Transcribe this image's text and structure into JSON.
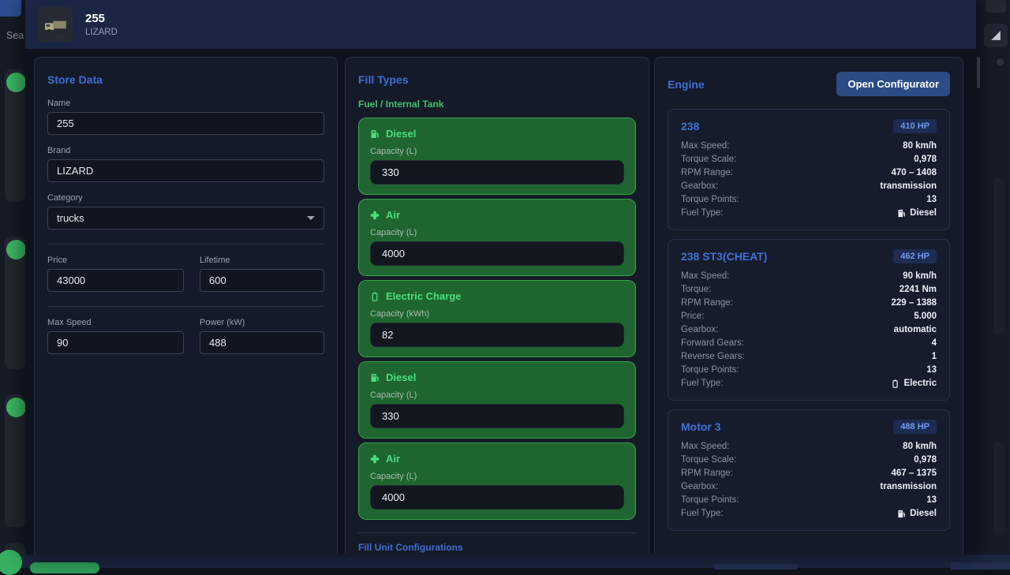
{
  "backdrop": {
    "search_text": "Sea"
  },
  "header": {
    "title": "255",
    "subtitle": "LIZARD",
    "thumbnail_icon": "truck-icon"
  },
  "store_data": {
    "heading": "Store Data",
    "name": {
      "label": "Name",
      "value": "255"
    },
    "brand": {
      "label": "Brand",
      "value": "LIZARD"
    },
    "category": {
      "label": "Category",
      "value": "trucks"
    },
    "price": {
      "label": "Price",
      "value": "43000"
    },
    "lifetime": {
      "label": "Lifetime",
      "value": "600"
    },
    "max_speed": {
      "label": "Max Speed",
      "value": "90"
    },
    "power": {
      "label": "Power (kW)",
      "value": "488"
    }
  },
  "fill_types": {
    "heading": "Fill Types",
    "section_label": "Fuel / Internal Tank",
    "cards": [
      {
        "name": "Diesel",
        "icon": "fuel-pump-icon",
        "capacity_label": "Capacity (L)",
        "value": "330"
      },
      {
        "name": "Air",
        "icon": "fan-icon",
        "capacity_label": "Capacity (L)",
        "value": "4000"
      },
      {
        "name": "Electric Charge",
        "icon": "battery-icon",
        "capacity_label": "Capacity (kWh)",
        "value": "82"
      },
      {
        "name": "Diesel",
        "icon": "fuel-pump-icon",
        "capacity_label": "Capacity (L)",
        "value": "330"
      },
      {
        "name": "Air",
        "icon": "fan-icon",
        "capacity_label": "Capacity (L)",
        "value": "4000"
      }
    ],
    "footer_heading": "Fill Unit Configurations"
  },
  "engine": {
    "heading": "Engine",
    "configurator_button": "Open Configurator",
    "cards": [
      {
        "title": "238",
        "hp": "410 HP",
        "rows": [
          {
            "label": "Max Speed:",
            "value": "80 km/h"
          },
          {
            "label": "Torque Scale:",
            "value": "0,978"
          },
          {
            "label": "RPM Range:",
            "value": "470 – 1408"
          },
          {
            "label": "Gearbox:",
            "value": "transmission"
          },
          {
            "label": "Torque Points:",
            "value": "13"
          },
          {
            "label": "Fuel Type:",
            "value": "Diesel",
            "icon": "fuel-pump-icon"
          }
        ]
      },
      {
        "title": "238 ST3(CHEAT)",
        "hp": "462 HP",
        "rows": [
          {
            "label": "Max Speed:",
            "value": "90 km/h"
          },
          {
            "label": "Torque:",
            "value": "2241 Nm"
          },
          {
            "label": "RPM Range:",
            "value": "229 – 1388"
          },
          {
            "label": "Price:",
            "value": "5.000"
          },
          {
            "label": "Gearbox:",
            "value": "automatic"
          },
          {
            "label": "Forward Gears:",
            "value": "4"
          },
          {
            "label": "Reverse Gears:",
            "value": "1"
          },
          {
            "label": "Torque Points:",
            "value": "13"
          },
          {
            "label": "Fuel Type:",
            "value": "Electric",
            "icon": "battery-icon"
          }
        ]
      },
      {
        "title": "Motor 3",
        "hp": "488 HP",
        "rows": [
          {
            "label": "Max Speed:",
            "value": "80 km/h"
          },
          {
            "label": "Torque Scale:",
            "value": "0,978"
          },
          {
            "label": "RPM Range:",
            "value": "467 – 1375"
          },
          {
            "label": "Gearbox:",
            "value": "transmission"
          },
          {
            "label": "Torque Points:",
            "value": "13"
          },
          {
            "label": "Fuel Type:",
            "value": "Diesel",
            "icon": "fuel-pump-icon"
          }
        ]
      }
    ]
  },
  "colors": {
    "accent_blue": "#3e6fd3",
    "header_navy": "#1b2544",
    "panel_bg": "#151a28",
    "green_text": "#4ade80",
    "green_card_bg": "#1f652f",
    "green_card_border": "#37a14c",
    "badge_bg": "#1d2c52",
    "badge_text": "#6f9bf0",
    "button_bg": "#2b4c87"
  }
}
